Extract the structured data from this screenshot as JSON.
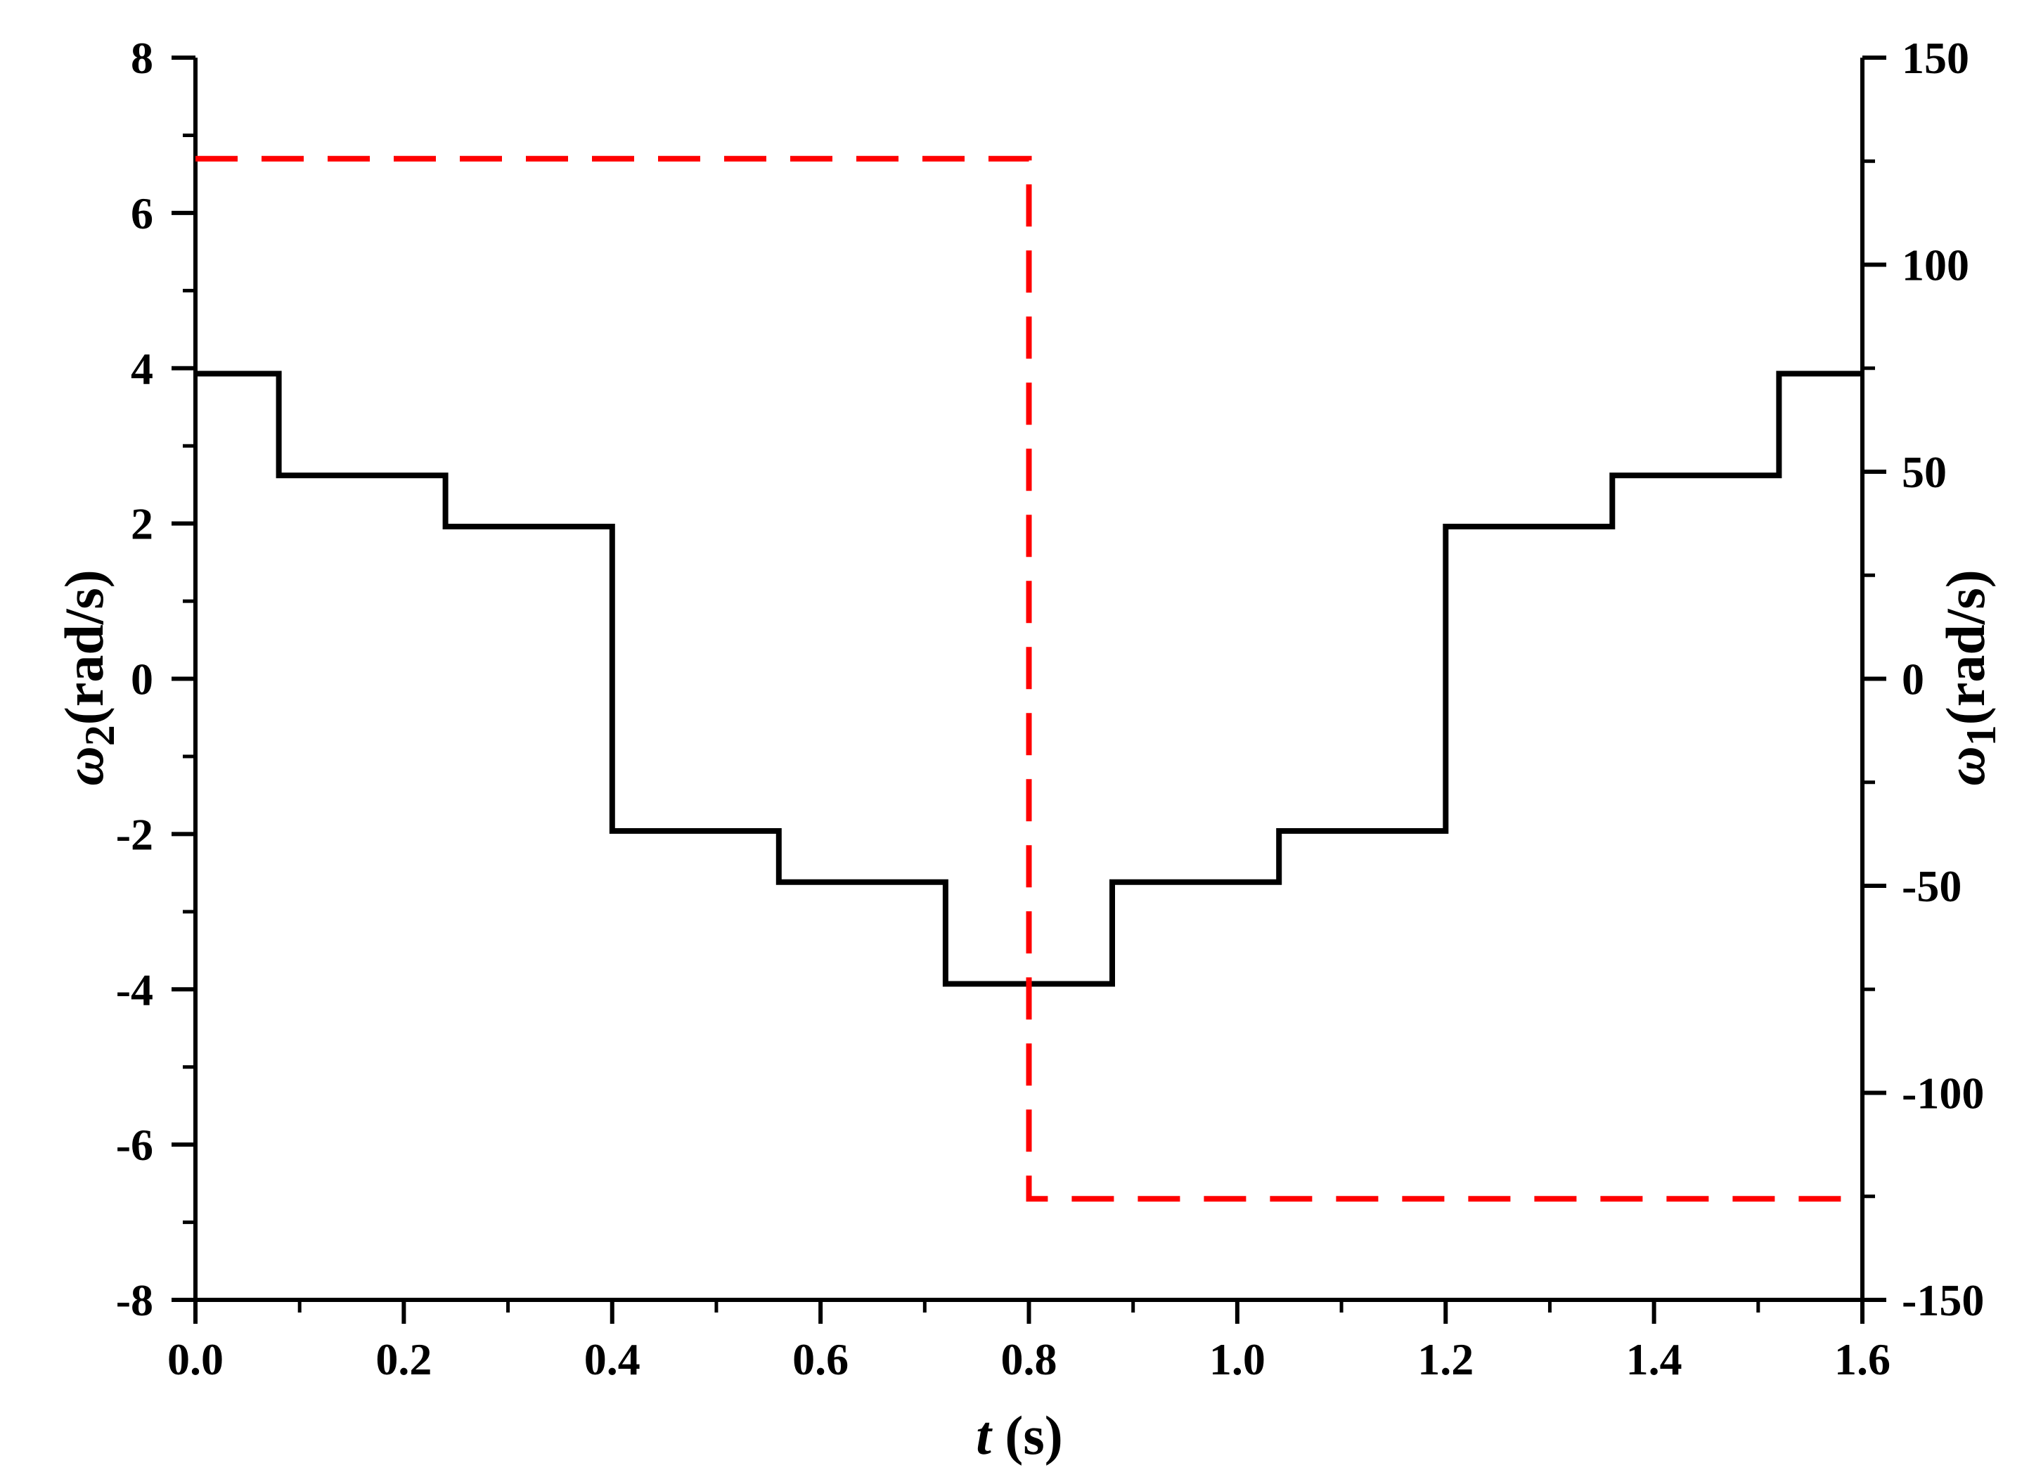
{
  "chart_data": {
    "type": "line",
    "x_axis": {
      "label_var": "t",
      "label_unit": " (s)",
      "range": [
        0.0,
        1.6
      ],
      "ticks": [
        "0.0",
        "0.2",
        "0.4",
        "0.6",
        "0.8",
        "1.0",
        "1.2",
        "1.4",
        "1.6"
      ]
    },
    "y_left": {
      "label_sym": "ω",
      "label_sub": "2",
      "label_unit": "(rad/s)",
      "range": [
        -8,
        8
      ],
      "ticks": [
        "-8",
        "-6",
        "-4",
        "-2",
        "0",
        "2",
        "4",
        "6",
        "8"
      ]
    },
    "y_right": {
      "label_sym": "ω",
      "label_sub": "1",
      "label_unit": "(rad/s)",
      "range": [
        -150,
        150
      ],
      "ticks": [
        "-150",
        "-100",
        "-50",
        "0",
        "50",
        "100",
        "150"
      ]
    },
    "series": [
      {
        "axis": "left",
        "color": "#000000",
        "style": "solid",
        "x": [
          0.0,
          0.08,
          0.08,
          0.24,
          0.24,
          0.4,
          0.4,
          0.56,
          0.56,
          0.72,
          0.72,
          0.88,
          0.88,
          1.04,
          1.04,
          1.2,
          1.2,
          1.36,
          1.36,
          1.52,
          1.52,
          1.6
        ],
        "y": [
          3.93,
          3.93,
          2.62,
          2.62,
          1.96,
          1.96,
          -1.96,
          -1.96,
          -2.62,
          -2.62,
          -3.93,
          -3.93,
          -2.62,
          -2.62,
          -1.96,
          -1.96,
          1.96,
          1.96,
          2.62,
          2.62,
          3.93,
          3.93
        ]
      },
      {
        "axis": "right",
        "color": "#ff0000",
        "style": "dashed",
        "x": [
          0.0,
          0.8,
          0.8,
          1.6
        ],
        "y": [
          125.6,
          125.6,
          -125.6,
          -125.6
        ]
      }
    ],
    "grid": false,
    "legend": "none"
  }
}
